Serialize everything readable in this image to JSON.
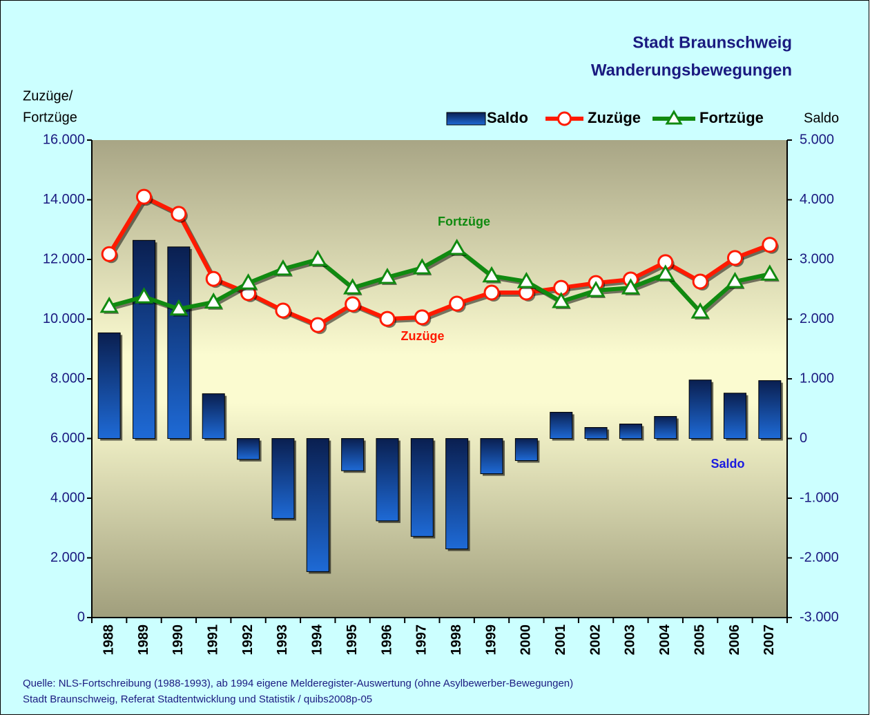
{
  "chart_data": {
    "type": "bar-line",
    "title": [
      "Stadt Braunschweig",
      "Wanderungsbewegungen"
    ],
    "y_label": [
      "Zuzüge/",
      "Fortzüge"
    ],
    "y2_label": "Saldo",
    "categories": [
      "1988",
      "1989",
      "1990",
      "1991",
      "1992",
      "1993",
      "1994",
      "1995",
      "1996",
      "1997",
      "1998",
      "1999",
      "2000",
      "2001",
      "2002",
      "2003",
      "2004",
      "2005",
      "2006",
      "2007"
    ],
    "series": [
      {
        "name": "Saldo",
        "type": "bar",
        "axis": "y2",
        "color": "#1e64c8",
        "values": [
          1770,
          3320,
          3210,
          750,
          -350,
          -1340,
          -2230,
          -540,
          -1380,
          -1640,
          -1850,
          -590,
          -370,
          440,
          185,
          243,
          370,
          980,
          760,
          970
        ]
      },
      {
        "name": "Zuzüge",
        "type": "line",
        "marker": "circle",
        "color": "#ff1a00",
        "values": [
          12180,
          14100,
          13530,
          11350,
          10870,
          10290,
          9800,
          10500,
          10010,
          10060,
          10520,
          10890,
          10890,
          11050,
          11210,
          11330,
          11910,
          11260,
          12050,
          12490
        ]
      },
      {
        "name": "Fortzüge",
        "type": "line",
        "marker": "triangle",
        "color": "#108a10",
        "values": [
          10430,
          10750,
          10340,
          10570,
          11210,
          11680,
          12000,
          11050,
          11400,
          11720,
          12370,
          11450,
          11260,
          10590,
          10960,
          11050,
          11510,
          10240,
          11260,
          11510
        ]
      }
    ],
    "ylim": [
      0,
      16000
    ],
    "yticks": [
      {
        "value": 0,
        "label": "0"
      },
      {
        "value": 2000,
        "label": "2.000"
      },
      {
        "value": 4000,
        "label": "4.000"
      },
      {
        "value": 6000,
        "label": "6.000"
      },
      {
        "value": 8000,
        "label": "8.000"
      },
      {
        "value": 10000,
        "label": "10.000"
      },
      {
        "value": 12000,
        "label": "12.000"
      },
      {
        "value": 14000,
        "label": "14.000"
      },
      {
        "value": 16000,
        "label": "16.000"
      }
    ],
    "y2lim": [
      -3000,
      5000
    ],
    "y2ticks": [
      {
        "value": -3000,
        "label": "-3.000"
      },
      {
        "value": -2000,
        "label": "-2.000"
      },
      {
        "value": -1000,
        "label": "-1.000"
      },
      0,
      {
        "value": 1000,
        "label": "1.000"
      },
      {
        "value": 2000,
        "label": "2.000"
      },
      {
        "value": 3000,
        "label": "3.000"
      },
      {
        "value": 4000,
        "label": "4.000"
      },
      {
        "value": 5000,
        "label": "5.000"
      }
    ],
    "annotations": [
      {
        "text": "Fortzüge",
        "color": "#108a10"
      },
      {
        "text": "Zuzüge",
        "color": "#ff1a00"
      },
      {
        "text": "Saldo",
        "color": "#1a1ae0"
      }
    ],
    "legend": "top",
    "source": [
      "Quelle: NLS-Fortschreibung (1988-1993), ab 1994 eigene Melderegister-Auswertung (ohne Asylbewerber-Bewegungen)",
      "Stadt Braunschweig, Referat Stadtentwicklung und Statistik / quibs2008p-05"
    ]
  }
}
